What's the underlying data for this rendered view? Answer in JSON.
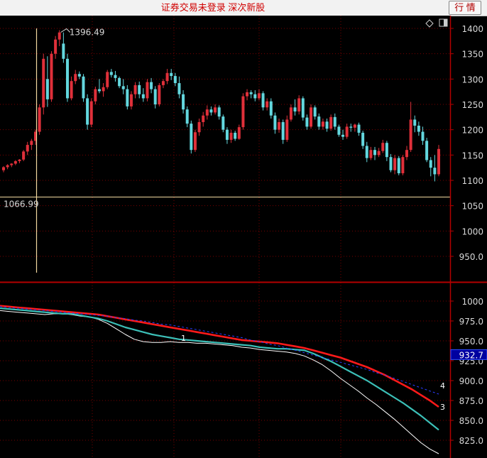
{
  "window": {
    "title": "证券交易未登录 深次新股",
    "button_label": "行 情"
  },
  "colors": {
    "up": "#e0303a",
    "down": "#63d7de",
    "axis": "#b40000",
    "grid": "#7a0000",
    "label": "#d8d8d8",
    "ma_thin": "#ffffff",
    "ma_teal": "#3cc0b8",
    "ma_red": "#ff1a1a",
    "ma_dashed": "#2a3cff",
    "crosshair": "#f3d9a0",
    "current_value_bg": "#0000a0"
  },
  "chart_data": [
    {
      "type": "candlestick",
      "ylim": [
        915,
        1420
      ],
      "y_ticks": [
        "1400",
        "1350",
        "1300",
        "1250",
        "1200",
        "1150",
        "1100",
        "1050",
        "1000",
        "950.0"
      ],
      "annotations": {
        "high_label": "1396.49",
        "high_value": 1396.49,
        "crosshair_label": "1066.99",
        "crosshair_value": 1066.99
      },
      "candles": [
        [
          1120,
          1128,
          1116,
          1126
        ],
        [
          1126,
          1132,
          1122,
          1130
        ],
        [
          1130,
          1134,
          1126,
          1133
        ],
        [
          1133,
          1140,
          1130,
          1138
        ],
        [
          1138,
          1142,
          1134,
          1141
        ],
        [
          1141,
          1160,
          1138,
          1157
        ],
        [
          1157,
          1176,
          1150,
          1170
        ],
        [
          1170,
          1182,
          1160,
          1178
        ],
        [
          1178,
          1200,
          1170,
          1196
        ],
        [
          1196,
          1250,
          1190,
          1244
        ],
        [
          1244,
          1350,
          1230,
          1340
        ],
        [
          1300,
          1345,
          1245,
          1260
        ],
        [
          1260,
          1355,
          1255,
          1350
        ],
        [
          1350,
          1385,
          1340,
          1378
        ],
        [
          1378,
          1396.49,
          1365,
          1392
        ],
        [
          1370,
          1392,
          1332,
          1340
        ],
        [
          1340,
          1350,
          1255,
          1262
        ],
        [
          1262,
          1305,
          1258,
          1296
        ],
        [
          1296,
          1318,
          1290,
          1310
        ],
        [
          1310,
          1315,
          1300,
          1305
        ],
        [
          1305,
          1310,
          1255,
          1262
        ],
        [
          1262,
          1270,
          1200,
          1210
        ],
        [
          1210,
          1262,
          1205,
          1256
        ],
        [
          1256,
          1285,
          1250,
          1280
        ],
        [
          1280,
          1300,
          1272,
          1276
        ],
        [
          1276,
          1292,
          1265,
          1284
        ],
        [
          1284,
          1318,
          1280,
          1314
        ],
        [
          1314,
          1320,
          1303,
          1308
        ],
        [
          1308,
          1316,
          1295,
          1302
        ],
        [
          1302,
          1305,
          1282,
          1286
        ],
        [
          1286,
          1300,
          1270,
          1280
        ],
        [
          1280,
          1288,
          1240,
          1246
        ],
        [
          1246,
          1276,
          1240,
          1270
        ],
        [
          1270,
          1294,
          1262,
          1288
        ],
        [
          1288,
          1295,
          1262,
          1270
        ],
        [
          1270,
          1282,
          1255,
          1262
        ],
        [
          1262,
          1300,
          1256,
          1294
        ],
        [
          1294,
          1302,
          1272,
          1280
        ],
        [
          1280,
          1286,
          1242,
          1250
        ],
        [
          1250,
          1292,
          1246,
          1288
        ],
        [
          1288,
          1300,
          1282,
          1296
        ],
        [
          1296,
          1320,
          1290,
          1312
        ],
        [
          1312,
          1320,
          1298,
          1306
        ],
        [
          1306,
          1312,
          1286,
          1292
        ],
        [
          1292,
          1305,
          1262,
          1270
        ],
        [
          1270,
          1278,
          1232,
          1240
        ],
        [
          1240,
          1246,
          1205,
          1212
        ],
        [
          1212,
          1218,
          1153,
          1160
        ],
        [
          1160,
          1200,
          1156,
          1195
        ],
        [
          1195,
          1222,
          1188,
          1215
        ],
        [
          1215,
          1235,
          1206,
          1228
        ],
        [
          1228,
          1248,
          1220,
          1240
        ],
        [
          1240,
          1246,
          1228,
          1234
        ],
        [
          1234,
          1250,
          1230,
          1244
        ],
        [
          1244,
          1248,
          1220,
          1226
        ],
        [
          1226,
          1230,
          1195,
          1200
        ],
        [
          1200,
          1205,
          1172,
          1180
        ],
        [
          1180,
          1200,
          1174,
          1194
        ],
        [
          1194,
          1198,
          1178,
          1182
        ],
        [
          1182,
          1210,
          1180,
          1205
        ],
        [
          1205,
          1272,
          1200,
          1266
        ],
        [
          1266,
          1280,
          1258,
          1274
        ],
        [
          1274,
          1278,
          1262,
          1270
        ],
        [
          1270,
          1278,
          1256,
          1262
        ],
        [
          1262,
          1280,
          1258,
          1272
        ],
        [
          1272,
          1276,
          1238,
          1244
        ],
        [
          1244,
          1262,
          1238,
          1256
        ],
        [
          1256,
          1262,
          1222,
          1228
        ],
        [
          1228,
          1234,
          1192,
          1200
        ],
        [
          1200,
          1222,
          1194,
          1215
        ],
        [
          1215,
          1220,
          1172,
          1180
        ],
        [
          1180,
          1228,
          1176,
          1220
        ],
        [
          1220,
          1250,
          1216,
          1244
        ],
        [
          1244,
          1260,
          1228,
          1236
        ],
        [
          1236,
          1268,
          1230,
          1262
        ],
        [
          1262,
          1266,
          1218,
          1224
        ],
        [
          1224,
          1230,
          1200,
          1206
        ],
        [
          1206,
          1250,
          1202,
          1244
        ],
        [
          1244,
          1248,
          1220,
          1226
        ],
        [
          1226,
          1232,
          1200,
          1206
        ],
        [
          1206,
          1222,
          1200,
          1216
        ],
        [
          1216,
          1222,
          1196,
          1202
        ],
        [
          1202,
          1230,
          1198,
          1225
        ],
        [
          1225,
          1232,
          1200,
          1206
        ],
        [
          1206,
          1210,
          1186,
          1190
        ],
        [
          1190,
          1200,
          1180,
          1186
        ],
        [
          1186,
          1212,
          1182,
          1206
        ],
        [
          1206,
          1212,
          1196,
          1204
        ],
        [
          1204,
          1212,
          1196,
          1210
        ],
        [
          1210,
          1214,
          1188,
          1194
        ],
        [
          1194,
          1198,
          1162,
          1168
        ],
        [
          1168,
          1176,
          1136,
          1144
        ],
        [
          1144,
          1166,
          1140,
          1160
        ],
        [
          1160,
          1166,
          1140,
          1150
        ],
        [
          1150,
          1164,
          1146,
          1158
        ],
        [
          1158,
          1180,
          1154,
          1174
        ],
        [
          1174,
          1178,
          1138,
          1146
        ],
        [
          1146,
          1152,
          1116,
          1120
        ],
        [
          1120,
          1150,
          1112,
          1144
        ],
        [
          1144,
          1148,
          1110,
          1114
        ],
        [
          1114,
          1150,
          1110,
          1146
        ],
        [
          1146,
          1168,
          1140,
          1160
        ],
        [
          1160,
          1255,
          1156,
          1220
        ],
        [
          1220,
          1228,
          1195,
          1208
        ],
        [
          1208,
          1216,
          1188,
          1196
        ],
        [
          1196,
          1206,
          1170,
          1178
        ],
        [
          1178,
          1184,
          1136,
          1140
        ],
        [
          1140,
          1146,
          1108,
          1125
        ],
        [
          1125,
          1150,
          1098,
          1112
        ],
        [
          1112,
          1170,
          1108,
          1162
        ]
      ]
    },
    {
      "type": "line",
      "ylim": [
        812,
        1000
      ],
      "y_ticks": [
        "1000",
        "975.0",
        "950.0",
        "925.0",
        "900.0",
        "875.0",
        "850.0",
        "825.0"
      ],
      "current_value": "932.7",
      "series": [
        {
          "name": "",
          "line_labels": [],
          "values": [
            988,
            987,
            986,
            985,
            984,
            983,
            984,
            984,
            983,
            981,
            980,
            977,
            972,
            965,
            958,
            952,
            949,
            948,
            948,
            949,
            948,
            948,
            947,
            947,
            946,
            945,
            944,
            942,
            941,
            939,
            938,
            937,
            936,
            934,
            931,
            926,
            920,
            912,
            903,
            895,
            887,
            878,
            870,
            861,
            852,
            842,
            832,
            822,
            814,
            808
          ]
        },
        {
          "name": "",
          "line_labels": [
            "1"
          ],
          "values": [
            991,
            990,
            989,
            988,
            987,
            986,
            985,
            984,
            984,
            982,
            980,
            978,
            975,
            971,
            967,
            964,
            961,
            958,
            956,
            954,
            952,
            951,
            950,
            949,
            948,
            947,
            946,
            945,
            944,
            942,
            941,
            940,
            940,
            939,
            938,
            934,
            929,
            924,
            918,
            912,
            906,
            900,
            893,
            886,
            879,
            872,
            864,
            856,
            847,
            838
          ]
        },
        {
          "name": "",
          "line_labels": [
            "3"
          ],
          "values": [
            994,
            993,
            992,
            991,
            990,
            989,
            988,
            987,
            986,
            985,
            984,
            983,
            981,
            979,
            977,
            975,
            973,
            971,
            969,
            967,
            965,
            963,
            961,
            959,
            957,
            955,
            953,
            951,
            950,
            949,
            948,
            947,
            945,
            943,
            941,
            938,
            935,
            932,
            929,
            925,
            921,
            917,
            912,
            907,
            901,
            895,
            889,
            882,
            875,
            867
          ]
        },
        {
          "name": "",
          "line_labels": [
            "4"
          ],
          "values": [
            993,
            992,
            991,
            990,
            989,
            988,
            987,
            986,
            985,
            984,
            983,
            982,
            981,
            979,
            978,
            976,
            975,
            973,
            971,
            970,
            968,
            966,
            964,
            962,
            960,
            958,
            956,
            954,
            951,
            949,
            946,
            944,
            941,
            938,
            935,
            932,
            929,
            926,
            923,
            920,
            917,
            914,
            910,
            907,
            903,
            899,
            895,
            891,
            887,
            883
          ]
        }
      ]
    }
  ]
}
